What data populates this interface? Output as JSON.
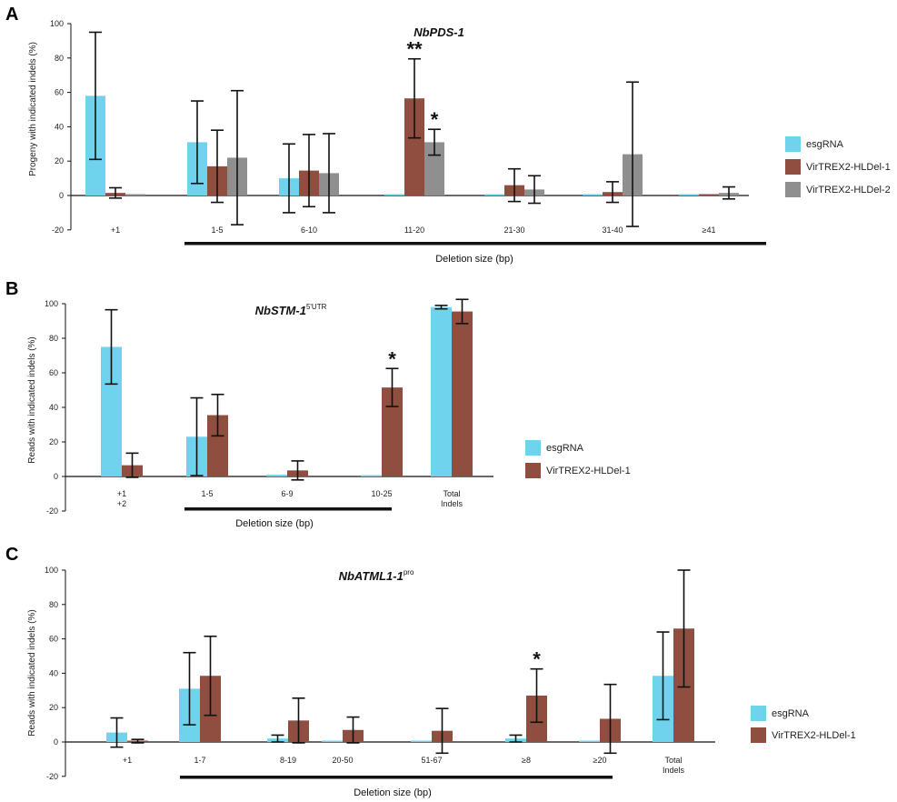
{
  "colors": {
    "esgRNA": "#6fd3ee",
    "VirTREX2-HLDel-1": "#8f4e3f",
    "VirTREX2-HLDel-2": "#8f8f8f"
  },
  "chart_data": [
    {
      "type": "bar",
      "panel": "A",
      "title": "NbPDS-1",
      "title_sup": "",
      "ylabel": "Progeny with indicated indels (%)",
      "xlabel": "Deletion size (bp)",
      "ylim": [
        -20,
        100
      ],
      "yticks": [
        -20,
        0,
        20,
        40,
        60,
        80,
        100
      ],
      "categories": [
        "+1",
        "1-5",
        "6-10",
        "11-20",
        "21-30",
        "31-40",
        "≥41"
      ],
      "series": [
        {
          "name": "esgRNA",
          "values": [
            58,
            31,
            10,
            0,
            0,
            0,
            0
          ],
          "err": [
            37,
            24,
            20,
            0,
            0,
            0,
            0
          ]
        },
        {
          "name": "VirTREX2-HLDel-1",
          "values": [
            1.5,
            17,
            14.5,
            56.5,
            6,
            2,
            0
          ],
          "err": [
            3,
            21,
            21,
            23,
            9.5,
            6,
            0
          ]
        },
        {
          "name": "VirTREX2-HLDel-2",
          "values": [
            0,
            22,
            13,
            31,
            3.5,
            24,
            1.5
          ],
          "err": [
            0,
            39,
            23,
            7.5,
            8,
            42,
            3.5
          ]
        }
      ],
      "annotations": [
        {
          "text": "**",
          "category": "11-20",
          "series": "VirTREX2-HLDel-1"
        },
        {
          "text": "*",
          "category": "11-20",
          "series": "VirTREX2-HLDel-2"
        }
      ],
      "underline_from": "1-5",
      "underline_to": "≥41"
    },
    {
      "type": "bar",
      "panel": "B",
      "title": "NbSTM-1",
      "title_sup": "5'UTR",
      "ylabel": "Reads with indicated indels (%)",
      "xlabel": "Deletion size (bp)",
      "ylim": [
        -20,
        100
      ],
      "yticks": [
        -20,
        0,
        20,
        40,
        60,
        80,
        100
      ],
      "categories": [
        "+1\n+2",
        "1-5",
        "6-9",
        "10-25",
        "Total\nIndels"
      ],
      "series": [
        {
          "name": "esgRNA",
          "values": [
            75,
            23,
            1,
            0,
            98
          ],
          "err": [
            21.5,
            22.5,
            0,
            0,
            1
          ]
        },
        {
          "name": "VirTREX2-HLDel-1",
          "values": [
            6.5,
            35.5,
            3.5,
            51.5,
            95.5
          ],
          "err": [
            7,
            12,
            5.5,
            11,
            7
          ]
        }
      ],
      "annotations": [
        {
          "text": "*",
          "category": "10-25",
          "series": "VirTREX2-HLDel-1"
        }
      ],
      "underline_from": "1-5",
      "underline_to": "10-25"
    },
    {
      "type": "bar",
      "panel": "C",
      "title": "NbATML1-1",
      "title_sup": "pro",
      "ylabel": "Reads with indicated indels (%)",
      "xlabel": "Deletion size (bp)",
      "ylim": [
        -20,
        100
      ],
      "yticks": [
        -20,
        0,
        20,
        40,
        60,
        80,
        100
      ],
      "categories": [
        "+1",
        "1-7",
        "8-19",
        "20-50",
        "51-67",
        "≥8",
        "≥20",
        "Total\nIndels"
      ],
      "series": [
        {
          "name": "esgRNA",
          "values": [
            5.5,
            31,
            2,
            0,
            0,
            2,
            0,
            38.5
          ],
          "err": [
            8.5,
            21,
            2,
            0,
            0,
            2,
            0,
            25.5
          ]
        },
        {
          "name": "VirTREX2-HLDel-1",
          "values": [
            0.5,
            38.5,
            12.5,
            7,
            6.5,
            27,
            13.5,
            66
          ],
          "err": [
            1,
            23,
            13,
            7.5,
            13,
            15.5,
            20,
            34
          ]
        }
      ],
      "annotations": [
        {
          "text": "*",
          "category": "≥8",
          "series": "VirTREX2-HLDel-1"
        }
      ],
      "underline_from": "1-7",
      "underline_to": "≥20"
    }
  ]
}
